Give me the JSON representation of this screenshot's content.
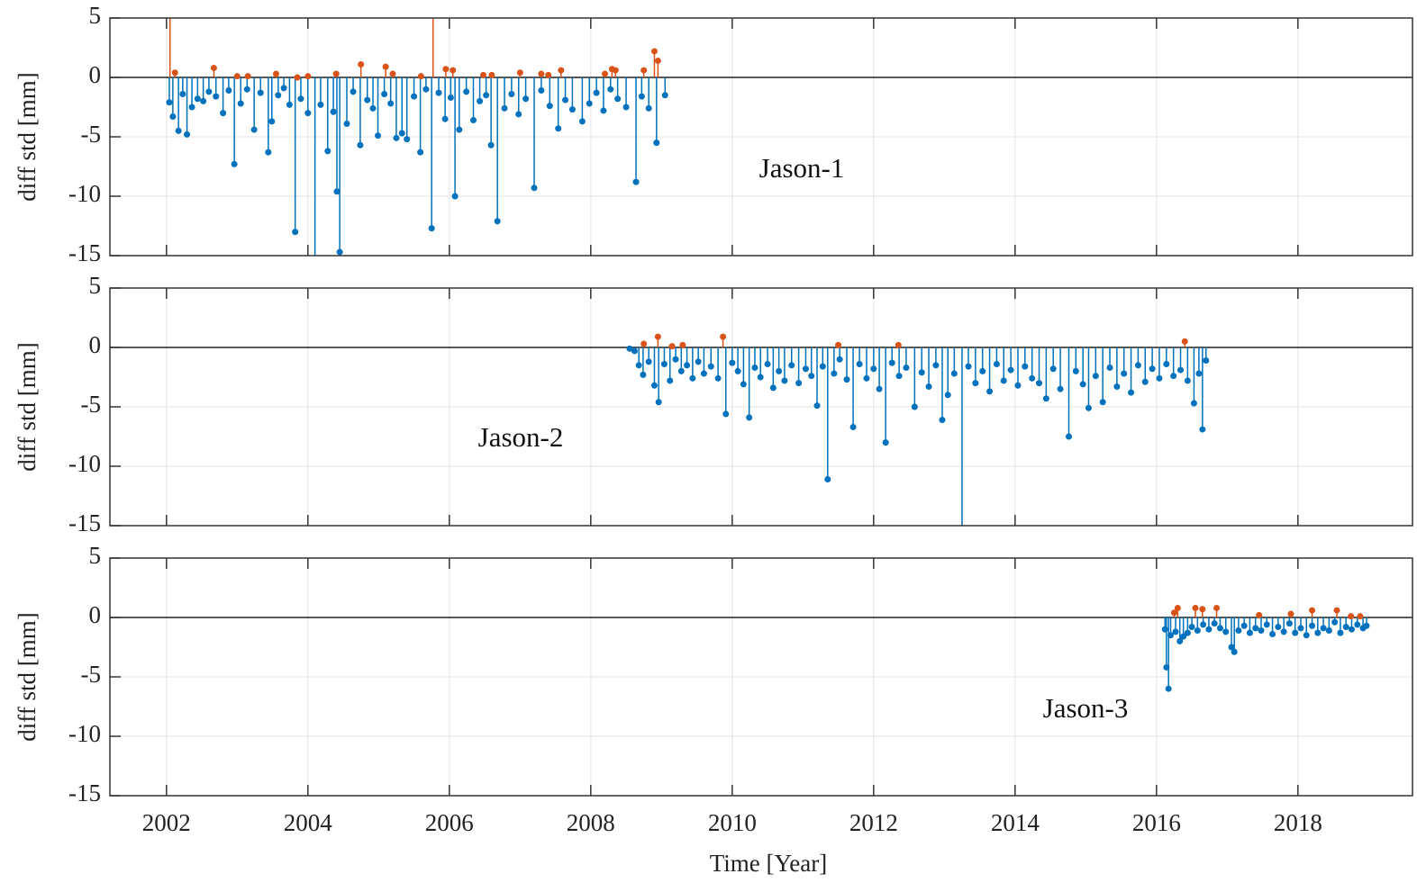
{
  "chart_data": [
    {
      "type": "stem",
      "ylabel": "diff std [mm]",
      "annotation": "Jason-1",
      "xlim": [
        2001.2,
        2019.62
      ],
      "ylim": [
        -15,
        5
      ],
      "xticks": [
        2002,
        2004,
        2006,
        2008,
        2010,
        2012,
        2014,
        2016,
        2018
      ],
      "yticks": [
        -15,
        -10,
        -5,
        0,
        5
      ],
      "grid": true,
      "series": [
        {
          "color": "#0072BD",
          "x": [
            2002.04,
            2002.09,
            2002.17,
            2002.23,
            2002.29,
            2002.36,
            2002.44,
            2002.52,
            2002.6,
            2002.7,
            2002.8,
            2002.88,
            2002.96,
            2003.05,
            2003.14,
            2003.24,
            2003.33,
            2003.44,
            2003.49,
            2003.58,
            2003.66,
            2003.74,
            2003.82,
            2003.9,
            2004.0,
            2004.1,
            2004.18,
            2004.28,
            2004.36,
            2004.41,
            2004.45,
            2004.55,
            2004.64,
            2004.74,
            2004.84,
            2004.92,
            2004.99,
            2005.08,
            2005.17,
            2005.25,
            2005.33,
            2005.4,
            2005.5,
            2005.59,
            2005.67,
            2005.75,
            2005.85,
            2005.94,
            2006.02,
            2006.08,
            2006.14,
            2006.24,
            2006.34,
            2006.43,
            2006.52,
            2006.59,
            2006.68,
            2006.78,
            2006.88,
            2006.98,
            2007.08,
            2007.2,
            2007.3,
            2007.42,
            2007.54,
            2007.64,
            2007.74,
            2007.88,
            2007.98,
            2008.08,
            2008.18,
            2008.28,
            2008.38,
            2008.5,
            2008.64,
            2008.72,
            2008.82,
            2008.93,
            2009.05
          ],
          "values": [
            -2.1,
            -3.3,
            -4.5,
            -1.4,
            -4.8,
            -2.5,
            -1.8,
            -2.0,
            -1.2,
            -1.6,
            -3.0,
            -1.1,
            -7.3,
            -2.2,
            -1.0,
            -4.4,
            -1.3,
            -6.3,
            -3.7,
            -1.5,
            -0.9,
            -2.3,
            -13.0,
            -1.8,
            -3.0,
            -17.0,
            -2.3,
            -6.2,
            -2.9,
            -9.6,
            -14.7,
            -3.9,
            -1.2,
            -5.7,
            -1.9,
            -2.6,
            -4.9,
            -1.4,
            -2.2,
            -5.1,
            -4.7,
            -5.2,
            -1.6,
            -6.3,
            -1.0,
            -12.7,
            -1.3,
            -3.5,
            -1.7,
            -10.0,
            -4.4,
            -1.2,
            -3.6,
            -2.0,
            -1.5,
            -5.7,
            -12.1,
            -2.6,
            -1.4,
            -3.1,
            -1.8,
            -9.3,
            -1.1,
            -2.4,
            -4.3,
            -1.9,
            -2.7,
            -3.7,
            -2.2,
            -1.3,
            -2.8,
            -1.0,
            -1.8,
            -2.5,
            -8.8,
            -1.6,
            -2.6,
            -5.5,
            -1.5
          ]
        },
        {
          "color": "#D95319",
          "x": [
            2002.05,
            2002.12,
            2002.67,
            2003.0,
            2003.15,
            2003.55,
            2003.85,
            2004.0,
            2004.4,
            2004.75,
            2005.1,
            2005.2,
            2005.6,
            2005.77,
            2005.95,
            2006.05,
            2006.48,
            2006.6,
            2007.0,
            2007.3,
            2007.4,
            2007.58,
            2008.2,
            2008.3,
            2008.35,
            2008.75,
            2008.9,
            2008.95
          ],
          "values": [
            9,
            0.4,
            0.8,
            0.1,
            0.1,
            0.3,
            0.0,
            0.1,
            0.3,
            1.1,
            0.9,
            0.3,
            0.1,
            9,
            0.7,
            0.6,
            0.2,
            0.2,
            0.4,
            0.3,
            0.2,
            0.6,
            0.3,
            0.7,
            0.6,
            0.6,
            2.2,
            1.4
          ]
        }
      ]
    },
    {
      "type": "stem",
      "ylabel": "diff std [mm]",
      "annotation": "Jason-2",
      "xlim": [
        2001.2,
        2019.62
      ],
      "ylim": [
        -15,
        5
      ],
      "xticks": [
        2002,
        2004,
        2006,
        2008,
        2010,
        2012,
        2014,
        2016,
        2018
      ],
      "yticks": [
        -15,
        -10,
        -5,
        0,
        5
      ],
      "grid": true,
      "series": [
        {
          "color": "#0072BD",
          "x": [
            2008.55,
            2008.62,
            2008.68,
            2008.74,
            2008.82,
            2008.9,
            2008.96,
            2009.04,
            2009.12,
            2009.2,
            2009.28,
            2009.36,
            2009.44,
            2009.52,
            2009.6,
            2009.7,
            2009.8,
            2009.91,
            2010.0,
            2010.08,
            2010.16,
            2010.24,
            2010.32,
            2010.4,
            2010.5,
            2010.58,
            2010.66,
            2010.74,
            2010.84,
            2010.94,
            2011.04,
            2011.12,
            2011.2,
            2011.28,
            2011.35,
            2011.44,
            2011.52,
            2011.62,
            2011.71,
            2011.8,
            2011.9,
            2012.0,
            2012.08,
            2012.17,
            2012.26,
            2012.36,
            2012.46,
            2012.58,
            2012.68,
            2012.78,
            2012.88,
            2012.97,
            2013.05,
            2013.14,
            2013.25,
            2013.34,
            2013.44,
            2013.54,
            2013.64,
            2013.74,
            2013.84,
            2013.94,
            2014.04,
            2014.14,
            2014.24,
            2014.34,
            2014.44,
            2014.54,
            2014.64,
            2014.76,
            2014.86,
            2014.96,
            2015.04,
            2015.14,
            2015.24,
            2015.34,
            2015.44,
            2015.54,
            2015.64,
            2015.74,
            2015.84,
            2015.94,
            2016.04,
            2016.14,
            2016.24,
            2016.34,
            2016.44,
            2016.53,
            2016.6,
            2016.65,
            2016.7
          ],
          "values": [
            -0.1,
            -0.3,
            -1.5,
            -2.3,
            -1.2,
            -3.2,
            -4.6,
            -1.4,
            -2.8,
            -1.0,
            -2.0,
            -1.5,
            -2.6,
            -1.2,
            -2.2,
            -1.6,
            -2.6,
            -5.6,
            -1.3,
            -2.0,
            -3.1,
            -5.9,
            -1.7,
            -2.5,
            -1.4,
            -3.4,
            -2.0,
            -2.8,
            -1.5,
            -3.0,
            -1.8,
            -2.4,
            -4.9,
            -1.6,
            -11.1,
            -2.2,
            -1.0,
            -2.7,
            -6.7,
            -1.4,
            -2.6,
            -1.8,
            -3.5,
            -8.0,
            -1.3,
            -2.4,
            -1.7,
            -5.0,
            -2.1,
            -3.3,
            -1.5,
            -6.1,
            -4.0,
            -2.2,
            -16.0,
            -1.6,
            -3.0,
            -2.0,
            -3.7,
            -1.4,
            -2.8,
            -1.9,
            -3.2,
            -1.6,
            -2.6,
            -3.0,
            -4.3,
            -1.8,
            -3.5,
            -7.5,
            -2.0,
            -3.1,
            -5.1,
            -2.4,
            -4.6,
            -1.7,
            -3.3,
            -2.2,
            -3.8,
            -1.5,
            -2.9,
            -1.8,
            -2.6,
            -1.4,
            -2.4,
            -1.9,
            -2.8,
            -4.7,
            -2.2,
            -6.9,
            -1.1
          ]
        },
        {
          "color": "#D95319",
          "x": [
            2008.75,
            2008.95,
            2009.15,
            2009.3,
            2009.87,
            2011.5,
            2012.35,
            2016.4
          ],
          "values": [
            0.3,
            0.9,
            0.1,
            0.2,
            0.9,
            0.2,
            0.2,
            0.5
          ]
        }
      ]
    },
    {
      "type": "stem",
      "ylabel": "diff std [mm]",
      "annotation": "Jason-3",
      "xlabel": "Time [Year]",
      "xlim": [
        2001.2,
        2019.62
      ],
      "ylim": [
        -15,
        5
      ],
      "xticks": [
        2002,
        2004,
        2006,
        2008,
        2010,
        2012,
        2014,
        2016,
        2018
      ],
      "yticks": [
        -15,
        -10,
        -5,
        0,
        5
      ],
      "grid": true,
      "series": [
        {
          "color": "#0072BD",
          "x": [
            2016.12,
            2016.14,
            2016.17,
            2016.2,
            2016.27,
            2016.33,
            2016.38,
            2016.44,
            2016.5,
            2016.58,
            2016.66,
            2016.74,
            2016.82,
            2016.9,
            2016.98,
            2017.06,
            2017.1,
            2017.16,
            2017.24,
            2017.32,
            2017.4,
            2017.48,
            2017.56,
            2017.64,
            2017.72,
            2017.8,
            2017.88,
            2017.96,
            2018.04,
            2018.12,
            2018.2,
            2018.28,
            2018.36,
            2018.44,
            2018.52,
            2018.6,
            2018.68,
            2018.76,
            2018.84,
            2018.92,
            2018.97
          ],
          "values": [
            -1.0,
            -4.2,
            -6.0,
            -1.5,
            -1.2,
            -2.0,
            -1.6,
            -1.3,
            -0.8,
            -1.1,
            -0.6,
            -1.0,
            -0.5,
            -0.9,
            -1.2,
            -2.5,
            -2.9,
            -1.1,
            -0.7,
            -1.3,
            -0.9,
            -1.1,
            -0.6,
            -1.4,
            -0.8,
            -1.2,
            -0.5,
            -1.3,
            -0.9,
            -1.5,
            -0.7,
            -1.3,
            -0.9,
            -1.1,
            -0.4,
            -1.3,
            -0.8,
            -1.0,
            -0.6,
            -0.9,
            -0.7
          ]
        },
        {
          "color": "#D95319",
          "x": [
            2016.25,
            2016.3,
            2016.55,
            2016.65,
            2016.85,
            2017.45,
            2017.9,
            2018.2,
            2018.55,
            2018.75,
            2018.88
          ],
          "values": [
            0.4,
            0.8,
            0.8,
            0.7,
            0.8,
            0.2,
            0.3,
            0.6,
            0.6,
            0.1,
            0.1
          ]
        }
      ]
    }
  ]
}
